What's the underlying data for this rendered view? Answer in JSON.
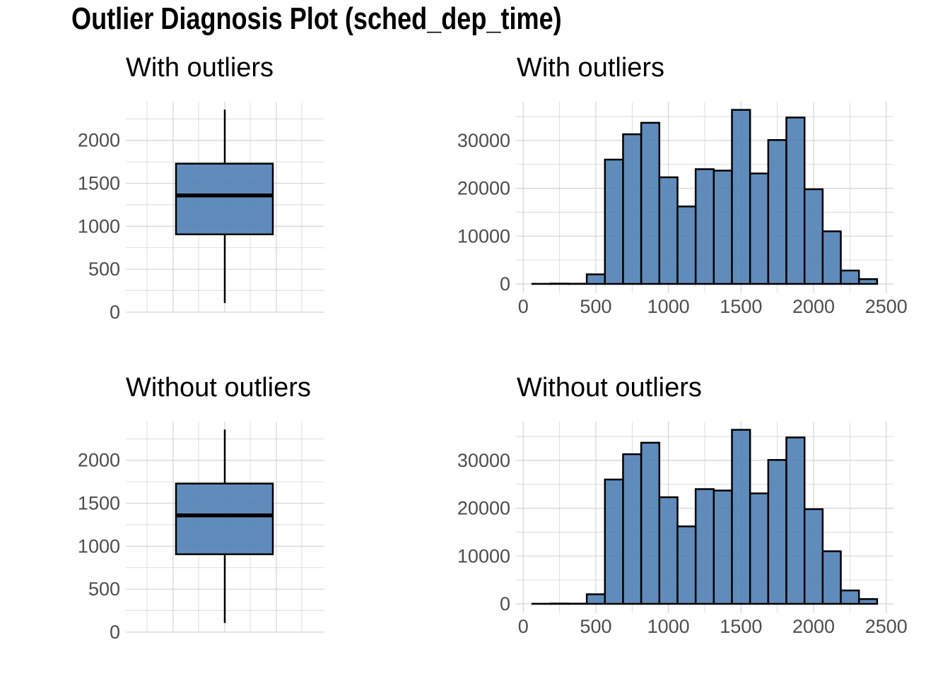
{
  "figure_title": "Outlier Diagnosis Plot (sched_dep_time)",
  "colors": {
    "fill": "#4f7fb5",
    "stroke": "#000000",
    "grid": "#d4d4d4",
    "tick_text": "#4d4d4d"
  },
  "chart_data": [
    {
      "type": "box",
      "title": "With outliers",
      "ylim": [
        0,
        2450
      ],
      "yticks": [
        0,
        500,
        1000,
        1500,
        2000
      ],
      "stats": {
        "min": 106,
        "q1": 906,
        "median": 1359,
        "q3": 1729,
        "max": 2359
      }
    },
    {
      "type": "bar",
      "title": "With outliers",
      "xlim": [
        -50,
        2550
      ],
      "ylim": [
        0,
        38000
      ],
      "xticks": [
        0,
        500,
        1000,
        1500,
        2000,
        2500
      ],
      "yticks": [
        0,
        10000,
        20000,
        30000
      ],
      "bin_width": 125,
      "bin_starts": [
        62.5,
        187.5,
        312.5,
        437.5,
        562.5,
        687.5,
        812.5,
        937.5,
        1062.5,
        1187.5,
        1312.5,
        1437.5,
        1562.5,
        1687.5,
        1812.5,
        1937.5,
        2062.5,
        2187.5,
        2312.5
      ],
      "values": [
        20,
        60,
        40,
        2000,
        26000,
        31300,
        33700,
        22300,
        16200,
        24000,
        23700,
        36400,
        23100,
        30100,
        34800,
        19800,
        11000,
        2800,
        1000
      ]
    },
    {
      "type": "box",
      "title": "Without outliers",
      "ylim": [
        0,
        2450
      ],
      "yticks": [
        0,
        500,
        1000,
        1500,
        2000
      ],
      "stats": {
        "min": 106,
        "q1": 906,
        "median": 1359,
        "q3": 1729,
        "max": 2359
      }
    },
    {
      "type": "bar",
      "title": "Without outliers",
      "xlim": [
        -50,
        2550
      ],
      "ylim": [
        0,
        38000
      ],
      "xticks": [
        0,
        500,
        1000,
        1500,
        2000,
        2500
      ],
      "yticks": [
        0,
        10000,
        20000,
        30000
      ],
      "bin_width": 125,
      "bin_starts": [
        62.5,
        187.5,
        312.5,
        437.5,
        562.5,
        687.5,
        812.5,
        937.5,
        1062.5,
        1187.5,
        1312.5,
        1437.5,
        1562.5,
        1687.5,
        1812.5,
        1937.5,
        2062.5,
        2187.5,
        2312.5
      ],
      "values": [
        20,
        60,
        40,
        2000,
        26000,
        31300,
        33700,
        22300,
        16200,
        24000,
        23700,
        36400,
        23100,
        30100,
        34800,
        19800,
        11000,
        2800,
        1000
      ]
    }
  ]
}
